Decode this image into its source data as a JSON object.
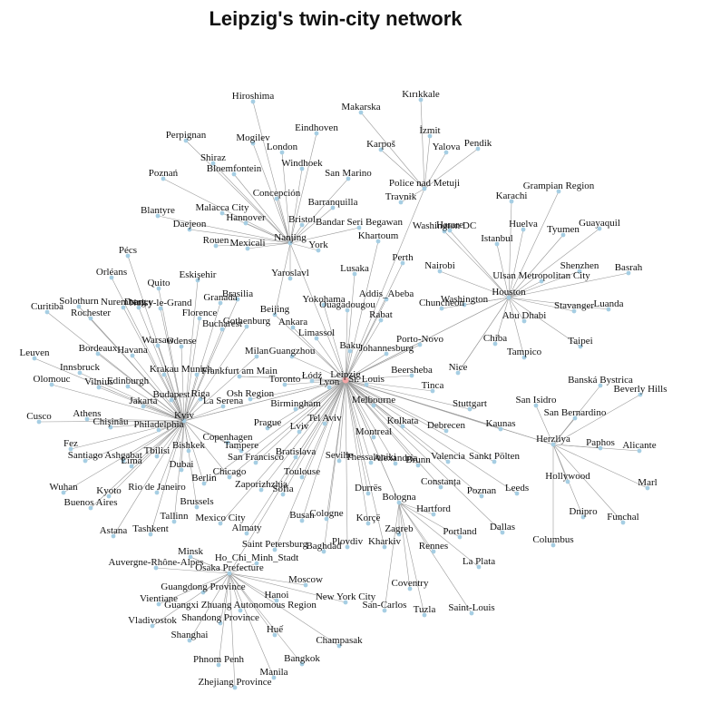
{
  "title": "Leipzig's twin-city network",
  "center": "Leipzig",
  "nodes": [
    "Hiroshima",
    "Makarska",
    "Kırıkkale",
    "Perpignan",
    "Mogilev",
    "Eindhoven",
    "İzmit",
    "Karpoš",
    "Yalova",
    "Pendik",
    "Shiraz",
    "London",
    "Windhoek",
    "Poznań",
    "Bloemfontein",
    "San Marino",
    "Police nad Metuji",
    "Travnik",
    "Concepción",
    "Barranquilla",
    "Karachi",
    "Grampian Region",
    "Blantyre",
    "Malacca City",
    "Daejeon",
    "Hannover",
    "Bristol",
    "Bandar Seri Begawan",
    "Harare",
    "Washington DC",
    "Huelva",
    "Guayaquil",
    "Tyumen",
    "Istanbul",
    "Rouen",
    "Mexicali",
    "Nanjing",
    "York",
    "Khartoum",
    "Pécs",
    "Perth",
    "Shenzhen",
    "Basrah",
    "Orléans",
    "Eskişehir",
    "Lusaka",
    "Nairobi",
    "Ulsan Metropolitan City",
    "Quito",
    "Yaroslavl",
    "Solothurn",
    "Curitiba",
    "Nuremberg",
    "Drancy",
    "Noisy-le-Grand",
    "Granada",
    "Brasilia",
    "Addis_Abeba",
    "Houston",
    "Rochester",
    "Florence",
    "Yokohama",
    "Ouagadougou",
    "Washington",
    "Chuncheon",
    "Luanda",
    "Stavanger",
    "Bucharest",
    "Gothenburg",
    "Beijing",
    "Ankara",
    "Rabat",
    "Abu Dhabi",
    "Warsaw",
    "Bordeaux",
    "Havana",
    "Odense",
    "Limassol",
    "Chiba",
    "Taipei",
    "Leuven",
    "Porto-Novo",
    "Baku",
    "Johannesburg",
    "Tampico",
    "Milan",
    "Guangzhou",
    "Innsbruck",
    "Krakau",
    "Munich",
    "Frankfurt am Main",
    "Olomouc",
    "Vilnius",
    "Edinburgh",
    "Łódź",
    "Leipzig",
    "Toronto",
    "Lyon",
    "St. Louis",
    "Beersheba",
    "Nice",
    "Banská Bystrica",
    "Budapest",
    "Riga",
    "Osh Region",
    "Tinca",
    "Beverly Hills",
    "Jakarta",
    "La Serena",
    "Melbourne",
    "Birmingham",
    "San Isidro",
    "Stuttgart",
    "Cusco",
    "Athens",
    "Kyiv",
    "San Bernardino",
    "Chişinău",
    "Philadelphia",
    "Prague",
    "Tel Aviv",
    "Kolkata",
    "Lviv",
    "Debrecen",
    "Kaunas",
    "Copenhagen",
    "Montreal",
    "Herzliya",
    "Paphos",
    "Fez",
    "Bishkek",
    "Tampere",
    "Alicante",
    "Santiago",
    "Ashgabat",
    "Tbilisi",
    "Lima",
    "Bratislava",
    "Seville",
    "Thessaloniki",
    "Alexandria",
    "Brunn",
    "Valencia",
    "Sankt Pölten",
    "Dubai",
    "San Francisco",
    "Hollywood",
    "Marl",
    "Berlin",
    "Toulouse",
    "Kyoto",
    "Wuhan",
    "Chicago",
    "Constanța",
    "Rio de Janeiro",
    "Zaporizhzhia",
    "Sofia",
    "Durrës",
    "Poznan",
    "Leeds",
    "Buenos Aires",
    "Brussels",
    "Bologna",
    "Dnipro",
    "Tallinn",
    "Mexico City",
    "Busan",
    "Cologne",
    "Funchal",
    "Hartford",
    "Korçë",
    "Dallas",
    "Almaty",
    "Zagreb",
    "Astana",
    "Tashkent",
    "Portland",
    "Columbus",
    "Saint Petersburg",
    "Plovdiv",
    "Kharkiv",
    "Baghdad",
    "Minsk",
    "Rennes",
    "La Plata",
    "Auvergne-Rhône-Alpes",
    "Ho_Chi_Minh_Stadt",
    "Osaka Prefecture",
    "Moscow",
    "Coventry",
    "Guangdong Province",
    "Hanoi",
    "New York City",
    "Vientiane",
    "Guangxi Zhuang Autonomous Region",
    "San-Carlos",
    "Tuzla",
    "Saint-Louis",
    "Shandong Province",
    "Vladivostok",
    "Huế",
    "Shanghai",
    "Champasak",
    "Phnom Penh",
    "Bangkok",
    "Manila",
    "Zhejiang Province"
  ]
}
